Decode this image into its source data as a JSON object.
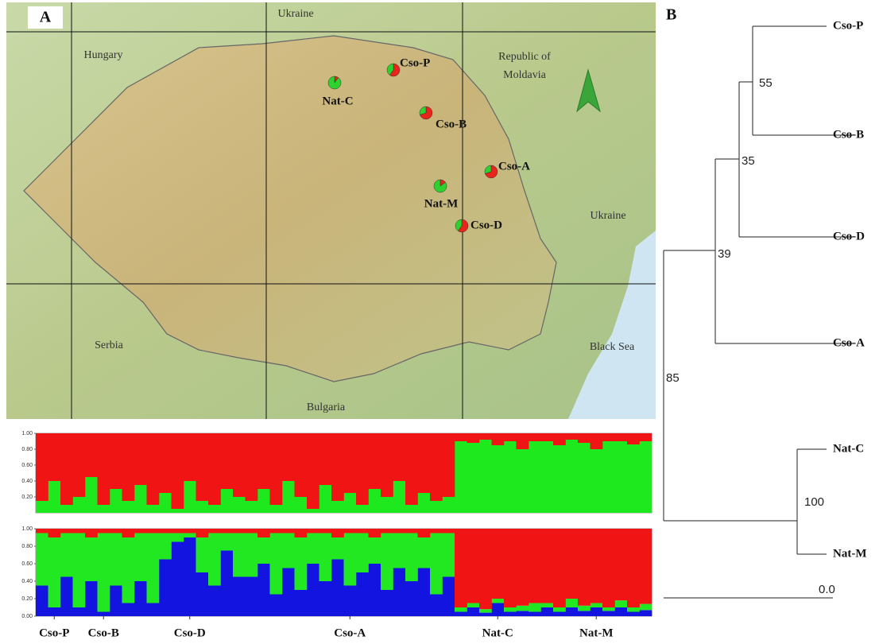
{
  "figure": {
    "panel_a_label": "A",
    "panel_b_label": "B",
    "map": {
      "labels": [
        "Ukraine",
        "Hungary",
        "Republic of",
        "Moldavia",
        "Ukraine",
        "Serbia",
        "Black Sea",
        "Bulgaria"
      ],
      "pie_colors": [
        "#e8251a",
        "#2fd12f"
      ],
      "sites": [
        {
          "name": "Cso-P",
          "share": [
            0.6,
            0.4
          ]
        },
        {
          "name": "Nat-C",
          "share": [
            0.1,
            0.9
          ]
        },
        {
          "name": "Cso-B",
          "share": [
            0.7,
            0.3
          ]
        },
        {
          "name": "Cso-A",
          "share": [
            0.7,
            0.3
          ]
        },
        {
          "name": "Nat-M",
          "share": [
            0.15,
            0.85
          ]
        },
        {
          "name": "Cso-D",
          "share": [
            0.6,
            0.4
          ]
        }
      ]
    },
    "tree": {
      "tips": [
        "Cso-P",
        "Cso-B",
        "Cso-D",
        "Cso-A",
        "Nat-C",
        "Nat-M"
      ],
      "supports": [
        "55",
        "35",
        "39",
        "85",
        "100"
      ],
      "scale_label": "0.0"
    }
  },
  "chart_data": [
    {
      "type": "stacked-bar",
      "ylim": [
        0,
        1
      ],
      "yticks": [
        {
          "value": 1,
          "label": "1.00"
        },
        {
          "value": 0.8,
          "label": "0.80"
        },
        {
          "value": 0.6,
          "label": "0.60"
        },
        {
          "value": 0.4,
          "label": "0.40"
        },
        {
          "value": 0.2,
          "label": "0.20"
        }
      ],
      "series": [
        {
          "color": "#1ee81e",
          "values": [
            0.15,
            0.4,
            0.1,
            0.2,
            0.45,
            0.1,
            0.3,
            0.15,
            0.35,
            0.1,
            0.25,
            0.05,
            0.4,
            0.15,
            0.1,
            0.3,
            0.2,
            0.15,
            0.3,
            0.1,
            0.4,
            0.2,
            0.05,
            0.35,
            0.15,
            0.25,
            0.1,
            0.3,
            0.2,
            0.4,
            0.1,
            0.25,
            0.15,
            0.2,
            0.9,
            0.88,
            0.92,
            0.85,
            0.9,
            0.8,
            0.9,
            0.9,
            0.85,
            0.92,
            0.88,
            0.8,
            0.9,
            0.9,
            0.86,
            0.9
          ]
        },
        {
          "color": "#f01414",
          "values": [
            0.85,
            0.6,
            0.9,
            0.8,
            0.55,
            0.9,
            0.7,
            0.85,
            0.65,
            0.9,
            0.75,
            0.95,
            0.6,
            0.85,
            0.9,
            0.7,
            0.8,
            0.85,
            0.7,
            0.9,
            0.6,
            0.8,
            0.95,
            0.65,
            0.85,
            0.75,
            0.9,
            0.7,
            0.8,
            0.6,
            0.9,
            0.75,
            0.85,
            0.8,
            0.1,
            0.12,
            0.08,
            0.15,
            0.1,
            0.2,
            0.1,
            0.1,
            0.15,
            0.08,
            0.12,
            0.2,
            0.1,
            0.1,
            0.14,
            0.1
          ]
        }
      ]
    },
    {
      "type": "stacked-bar",
      "ylim": [
        0,
        1
      ],
      "yticks": [
        {
          "value": 1,
          "label": "1.00"
        },
        {
          "value": 0.8,
          "label": "0.80"
        },
        {
          "value": 0.6,
          "label": "0.60"
        },
        {
          "value": 0.4,
          "label": "0.40"
        },
        {
          "value": 0.2,
          "label": "0.20"
        },
        {
          "value": 0,
          "label": "0.00"
        }
      ],
      "categories": [
        null,
        "Cso-P",
        null,
        null,
        null,
        "Cso-B",
        null,
        null,
        null,
        null,
        null,
        null,
        "Cso-D",
        null,
        null,
        null,
        null,
        null,
        null,
        null,
        null,
        null,
        null,
        null,
        null,
        "Cso-A",
        null,
        null,
        null,
        null,
        null,
        null,
        null,
        null,
        null,
        null,
        null,
        "Nat-C",
        null,
        null,
        null,
        null,
        null,
        null,
        null,
        "Nat-M",
        null,
        null,
        null,
        null
      ],
      "series": [
        {
          "color": "#1414e0",
          "values": [
            0.35,
            0.1,
            0.45,
            0.1,
            0.4,
            0.05,
            0.35,
            0.15,
            0.4,
            0.15,
            0.65,
            0.85,
            0.9,
            0.5,
            0.35,
            0.75,
            0.45,
            0.45,
            0.6,
            0.25,
            0.55,
            0.3,
            0.6,
            0.4,
            0.65,
            0.35,
            0.5,
            0.6,
            0.3,
            0.55,
            0.4,
            0.55,
            0.25,
            0.45,
            0.05,
            0.1,
            0.04,
            0.15,
            0.05,
            0.06,
            0.05,
            0.1,
            0.05,
            0.1,
            0.06,
            0.1,
            0.06,
            0.1,
            0.05,
            0.07
          ]
        },
        {
          "color": "#22e822",
          "values": [
            0.6,
            0.8,
            0.5,
            0.85,
            0.5,
            0.9,
            0.6,
            0.75,
            0.55,
            0.8,
            0.3,
            0.1,
            0.05,
            0.4,
            0.6,
            0.2,
            0.5,
            0.5,
            0.3,
            0.7,
            0.4,
            0.6,
            0.35,
            0.55,
            0.25,
            0.6,
            0.45,
            0.3,
            0.65,
            0.4,
            0.55,
            0.35,
            0.7,
            0.5,
            0.05,
            0.05,
            0.04,
            0.05,
            0.05,
            0.06,
            0.1,
            0.05,
            0.05,
            0.1,
            0.06,
            0.05,
            0.04,
            0.08,
            0.05,
            0.07
          ]
        },
        {
          "color": "#f01414",
          "values": [
            0.05,
            0.1,
            0.05,
            0.05,
            0.1,
            0.05,
            0.05,
            0.1,
            0.05,
            0.05,
            0.05,
            0.05,
            0.05,
            0.1,
            0.05,
            0.05,
            0.05,
            0.05,
            0.1,
            0.05,
            0.05,
            0.1,
            0.05,
            0.05,
            0.1,
            0.05,
            0.05,
            0.1,
            0.05,
            0.05,
            0.05,
            0.1,
            0.05,
            0.05,
            0.9,
            0.85,
            0.92,
            0.8,
            0.9,
            0.88,
            0.85,
            0.85,
            0.9,
            0.8,
            0.88,
            0.85,
            0.9,
            0.82,
            0.9,
            0.86
          ]
        }
      ]
    }
  ]
}
